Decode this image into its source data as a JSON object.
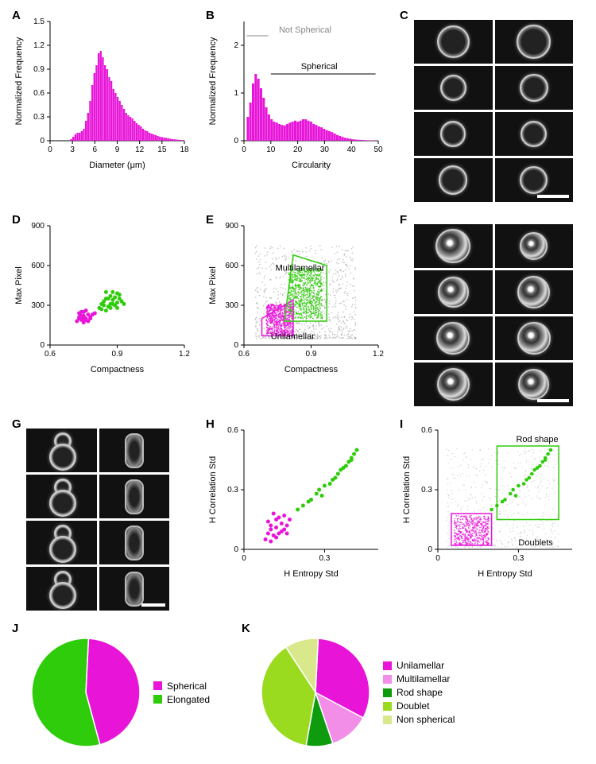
{
  "colors": {
    "magenta": "#e815d9",
    "green": "#2ecc0a",
    "gray": "#888888",
    "light_green": "#c7e85a",
    "pale_green": "#e2f0a8",
    "light_magenta": "#f28de8",
    "dark_green": "#0e9b0e"
  },
  "panelA": {
    "label": "A",
    "type": "histogram",
    "xlabel": "Diameter (μm)",
    "ylabel": "Normalized Frequency",
    "xlim": [
      0,
      18
    ],
    "xticks": [
      0,
      3,
      6,
      9,
      12,
      15,
      18
    ],
    "ylim": [
      0,
      1.5
    ],
    "yticks": [
      0,
      0.3,
      0.6,
      0.9,
      1.2,
      1.5
    ],
    "bins": [
      0,
      0,
      0,
      0,
      0,
      0,
      0.02,
      0.05,
      0.08,
      0.1,
      0.1,
      0.12,
      0.15,
      0.25,
      0.35,
      0.5,
      0.7,
      0.85,
      0.95,
      1.1,
      1.13,
      1.05,
      0.95,
      0.9,
      0.8,
      0.75,
      0.65,
      0.6,
      0.55,
      0.5,
      0.45,
      0.4,
      0.35,
      0.32,
      0.3,
      0.28,
      0.25,
      0.22,
      0.2,
      0.18,
      0.15,
      0.13,
      0.12,
      0.1,
      0.09,
      0.08,
      0.07,
      0.06,
      0.05,
      0.045,
      0.04,
      0.035,
      0.03,
      0.025,
      0.02,
      0.018,
      0.015,
      0.012,
      0.01,
      0.008
    ],
    "bin_start": 1,
    "bin_end": 18,
    "bar_color": "#e815d9"
  },
  "panelB": {
    "label": "B",
    "type": "histogram",
    "xlabel": "Circularity",
    "ylabel": "Normalized Frequency",
    "xlim": [
      0,
      50
    ],
    "xticks": [
      0,
      10,
      20,
      30,
      40,
      50
    ],
    "ylim": [
      0,
      2.5
    ],
    "yticks": [
      0,
      1,
      2
    ],
    "bins": [
      0.5,
      0.8,
      1.2,
      1.4,
      1.3,
      1.1,
      0.9,
      0.7,
      0.55,
      0.45,
      0.4,
      0.38,
      0.35,
      0.33,
      0.32,
      0.35,
      0.38,
      0.4,
      0.42,
      0.4,
      0.42,
      0.45,
      0.45,
      0.42,
      0.4,
      0.35,
      0.33,
      0.3,
      0.28,
      0.25,
      0.22,
      0.2,
      0.18,
      0.15,
      0.12,
      0.1,
      0.08,
      0.06,
      0.05,
      0.04,
      0.03,
      0.025,
      0.02,
      0.018,
      0.015,
      0.012,
      0.01,
      0.008,
      0.006,
      0.005
    ],
    "bin_start": 1,
    "bin_end": 50,
    "bar_color": "#e815d9",
    "annot_not_spherical": "Not Spherical",
    "annot_spherical": "Spherical",
    "spherical_start": 10
  },
  "panelC": {
    "label": "C",
    "scalebar_width": 40
  },
  "panelD": {
    "label": "D",
    "type": "scatter",
    "xlabel": "Compactness",
    "ylabel": "Max Pixel",
    "xlim": [
      0.6,
      1.2
    ],
    "xticks": [
      0.6,
      0.9,
      1.2
    ],
    "ylim": [
      0,
      900
    ],
    "yticks": [
      0,
      300,
      600,
      900
    ],
    "magenta_pts": [
      [
        0.72,
        180
      ],
      [
        0.73,
        210
      ],
      [
        0.74,
        190
      ],
      [
        0.75,
        220
      ],
      [
        0.73,
        240
      ],
      [
        0.76,
        200
      ],
      [
        0.75,
        170
      ],
      [
        0.77,
        230
      ],
      [
        0.74,
        250
      ],
      [
        0.78,
        210
      ],
      [
        0.76,
        260
      ],
      [
        0.75,
        200
      ],
      [
        0.77,
        180
      ],
      [
        0.79,
        230
      ],
      [
        0.73,
        200
      ],
      [
        0.8,
        240
      ],
      [
        0.74,
        220
      ],
      [
        0.76,
        190
      ],
      [
        0.78,
        200
      ],
      [
        0.75,
        250
      ]
    ],
    "green_pts": [
      [
        0.82,
        280
      ],
      [
        0.84,
        300
      ],
      [
        0.85,
        350
      ],
      [
        0.87,
        310
      ],
      [
        0.88,
        340
      ],
      [
        0.86,
        290
      ],
      [
        0.89,
        360
      ],
      [
        0.9,
        320
      ],
      [
        0.83,
        270
      ],
      [
        0.91,
        380
      ],
      [
        0.85,
        400
      ],
      [
        0.87,
        370
      ],
      [
        0.92,
        330
      ],
      [
        0.88,
        310
      ],
      [
        0.9,
        390
      ],
      [
        0.86,
        350
      ],
      [
        0.89,
        300
      ],
      [
        0.84,
        330
      ],
      [
        0.87,
        280
      ],
      [
        0.91,
        350
      ],
      [
        0.93,
        310
      ],
      [
        0.85,
        260
      ],
      [
        0.88,
        400
      ],
      [
        0.83,
        310
      ],
      [
        0.9,
        280
      ]
    ]
  },
  "panelE": {
    "label": "E",
    "type": "scatter",
    "xlabel": "Compactness",
    "ylabel": "Max Pixel",
    "xlim": [
      0.6,
      1.2
    ],
    "xticks": [
      0.6,
      0.9,
      1.2
    ],
    "ylim": [
      0,
      900
    ],
    "yticks": [
      0,
      300,
      600,
      900
    ],
    "label_multi": "Multilamellar",
    "label_uni": "Unilamellar",
    "gate_uni": [
      [
        0.68,
        70
      ],
      [
        0.82,
        70
      ],
      [
        0.82,
        340
      ],
      [
        0.68,
        200
      ]
    ],
    "gate_multi": [
      [
        0.78,
        180
      ],
      [
        0.97,
        180
      ],
      [
        0.97,
        600
      ],
      [
        0.82,
        680
      ]
    ]
  },
  "panelF": {
    "label": "F",
    "scalebar_width": 40
  },
  "panelG": {
    "label": "G",
    "scalebar_width": 30
  },
  "panelH": {
    "label": "H",
    "type": "scatter",
    "xlabel": "H Entropy Std",
    "ylabel": "H Correlation Std",
    "xlim": [
      0,
      0.5
    ],
    "xticks": [
      0,
      0.3
    ],
    "xtick_labels": [
      "0",
      "0.3"
    ],
    "ylim": [
      0,
      0.6
    ],
    "yticks": [
      0,
      0.3,
      0.6
    ],
    "magenta_pts": [
      [
        0.08,
        0.05
      ],
      [
        0.09,
        0.08
      ],
      [
        0.1,
        0.12
      ],
      [
        0.11,
        0.07
      ],
      [
        0.12,
        0.15
      ],
      [
        0.1,
        0.1
      ],
      [
        0.13,
        0.08
      ],
      [
        0.14,
        0.13
      ],
      [
        0.11,
        0.18
      ],
      [
        0.15,
        0.1
      ],
      [
        0.12,
        0.06
      ],
      [
        0.16,
        0.12
      ],
      [
        0.13,
        0.16
      ],
      [
        0.09,
        0.14
      ],
      [
        0.17,
        0.15
      ],
      [
        0.1,
        0.04
      ],
      [
        0.14,
        0.09
      ],
      [
        0.15,
        0.17
      ],
      [
        0.12,
        0.11
      ],
      [
        0.16,
        0.08
      ]
    ],
    "green_pts": [
      [
        0.2,
        0.2
      ],
      [
        0.22,
        0.22
      ],
      [
        0.25,
        0.25
      ],
      [
        0.27,
        0.28
      ],
      [
        0.28,
        0.3
      ],
      [
        0.3,
        0.32
      ],
      [
        0.32,
        0.33
      ],
      [
        0.33,
        0.35
      ],
      [
        0.35,
        0.38
      ],
      [
        0.36,
        0.4
      ],
      [
        0.38,
        0.42
      ],
      [
        0.39,
        0.44
      ],
      [
        0.4,
        0.45
      ],
      [
        0.41,
        0.48
      ],
      [
        0.42,
        0.5
      ],
      [
        0.24,
        0.24
      ],
      [
        0.29,
        0.27
      ],
      [
        0.34,
        0.36
      ],
      [
        0.37,
        0.41
      ],
      [
        0.4,
        0.46
      ]
    ]
  },
  "panelI": {
    "label": "I",
    "type": "scatter",
    "xlabel": "H Entropy Std",
    "ylabel": "H Correlation Std",
    "xlim": [
      0,
      0.5
    ],
    "xticks": [
      0,
      0.3
    ],
    "xtick_labels": [
      "0",
      "0.3"
    ],
    "ylim": [
      0,
      0.6
    ],
    "yticks": [
      0,
      0.3,
      0.6
    ],
    "label_rod": "Rod shape",
    "label_doublet": "Doublets",
    "gate_doublet": [
      [
        0.05,
        0.02
      ],
      [
        0.2,
        0.02
      ],
      [
        0.2,
        0.18
      ],
      [
        0.05,
        0.18
      ]
    ],
    "gate_rod": [
      [
        0.22,
        0.15
      ],
      [
        0.45,
        0.15
      ],
      [
        0.45,
        0.52
      ],
      [
        0.22,
        0.52
      ]
    ]
  },
  "panelJ": {
    "label": "J",
    "type": "pie",
    "slices": [
      {
        "label": "Spherical",
        "value": 45,
        "color": "#e815d9"
      },
      {
        "label": "Elongated",
        "value": 55,
        "color": "#2ecc0a"
      }
    ]
  },
  "panelK": {
    "label": "K",
    "type": "pie",
    "slices": [
      {
        "label": "Unilamellar",
        "value": 32,
        "color": "#e815d9"
      },
      {
        "label": "Multilamellar",
        "value": 12,
        "color": "#f28de8"
      },
      {
        "label": "Rod shape",
        "value": 8,
        "color": "#0e9b0e"
      },
      {
        "label": "Doublet",
        "value": 38,
        "color": "#9bdb1f"
      },
      {
        "label": "Non spherical",
        "value": 10,
        "color": "#d8e88a"
      }
    ]
  }
}
